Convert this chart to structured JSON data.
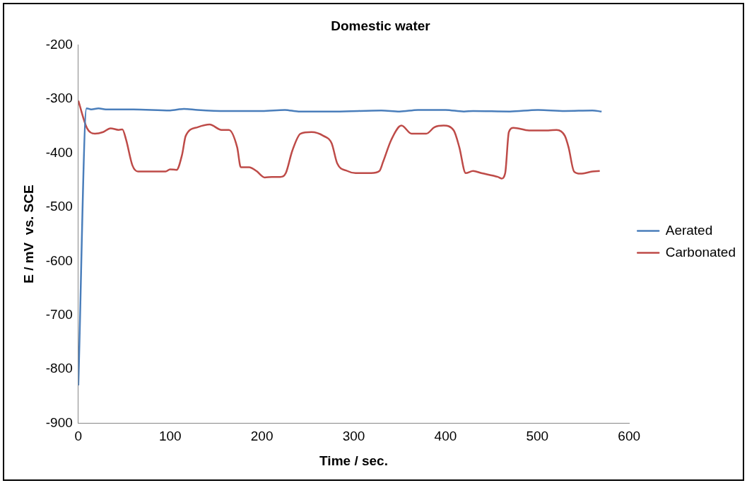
{
  "chart_data": {
    "type": "line",
    "title": "Domestic water",
    "xlabel": "Time / sec.",
    "ylabel": "E / mV  vs. SCE",
    "xlim": [
      0,
      600
    ],
    "xticks": [
      0,
      100,
      200,
      300,
      400,
      500,
      600
    ],
    "ylim": [
      -900,
      -200
    ],
    "yticks": [
      -900,
      -800,
      -700,
      -600,
      -500,
      -400,
      -300,
      -200
    ],
    "grid": false,
    "legend": "right",
    "marker": "none",
    "line_style": "solid",
    "series": [
      {
        "name": "Aerated",
        "color": "#4a7ebb",
        "x": [
          0,
          9,
          14,
          22,
          30,
          60,
          100,
          115,
          130,
          160,
          200,
          225,
          240,
          280,
          330,
          350,
          370,
          400,
          420,
          430,
          470,
          500,
          530,
          560,
          570
        ],
        "values": [
          -830,
          -317,
          -319,
          -317,
          -319,
          -319,
          -321,
          -318,
          -320,
          -322,
          -322,
          -320,
          -323,
          -323,
          -321,
          -323,
          -320,
          -320,
          -323,
          -322,
          -323,
          -320,
          -322,
          -321,
          -323
        ]
      },
      {
        "name": "Carbonated",
        "color": "#be4b48",
        "x": [
          0,
          9.5,
          18,
          27,
          35,
          44,
          48,
          52,
          59,
          65,
          95,
          100,
          107,
          113,
          117,
          130,
          143,
          156,
          164,
          173,
          177,
          186,
          194,
          203,
          211,
          220,
          226,
          233,
          242,
          254,
          267,
          276,
          282,
          293,
          302,
          319,
          328,
          332,
          341,
          352,
          363,
          379,
          388,
          398,
          409,
          415,
          422,
          430,
          439,
          457,
          461,
          465,
          469,
          474,
          491,
          512,
          521,
          530,
          534,
          540,
          547,
          560,
          568
        ],
        "values": [
          -303,
          -354,
          -364,
          -361,
          -354,
          -357,
          -356,
          -375,
          -423,
          -434,
          -434,
          -430,
          -431,
          -403,
          -368,
          -352,
          -347,
          -357,
          -357,
          -389,
          -426,
          -426,
          -433,
          -445,
          -444,
          -444,
          -437,
          -396,
          -364,
          -361,
          -368,
          -382,
          -419,
          -433,
          -437,
          -437,
          -433,
          -416,
          -375,
          -349,
          -364,
          -364,
          -352,
          -349,
          -358,
          -389,
          -437,
          -433,
          -437,
          -444,
          -447,
          -437,
          -361,
          -353,
          -358,
          -358,
          -357,
          -368,
          -389,
          -434,
          -438,
          -434,
          -433
        ]
      }
    ]
  }
}
